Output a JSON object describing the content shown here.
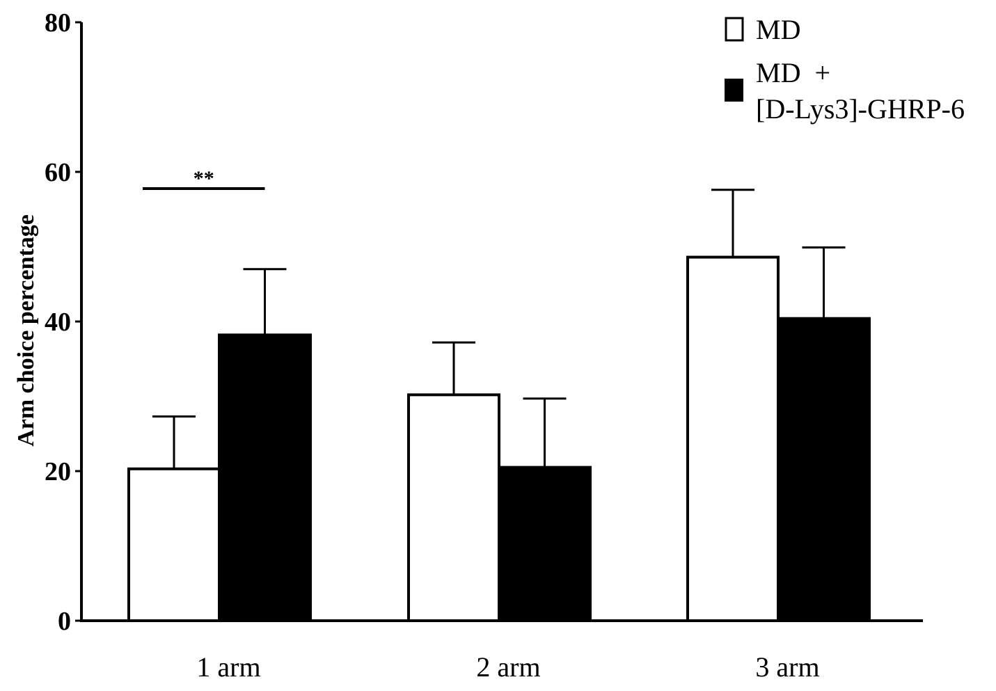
{
  "chart_data": {
    "type": "bar",
    "title": "",
    "xlabel": "",
    "ylabel": "Arm choice percentage",
    "ylim": [
      0,
      80
    ],
    "yticks": [
      0,
      20,
      40,
      60,
      80
    ],
    "categories": [
      "1 arm",
      "2 arm",
      "3 arm"
    ],
    "series": [
      {
        "name": "MD",
        "fill": "#ffffff",
        "stroke": "#000000",
        "values": [
          20.3,
          30.2,
          48.6
        ],
        "errors": [
          7.0,
          7.0,
          9.0
        ]
      },
      {
        "name_lines": [
          "MD  +",
          "[D-Lys3]-GHRP-6"
        ],
        "fill": "#000000",
        "stroke": "#000000",
        "values": [
          38.2,
          20.5,
          40.4
        ],
        "errors": [
          8.8,
          9.2,
          9.5
        ]
      }
    ],
    "significance": [
      {
        "label": "**",
        "category": "1 arm"
      }
    ],
    "legend": "top-right",
    "grid": false
  }
}
